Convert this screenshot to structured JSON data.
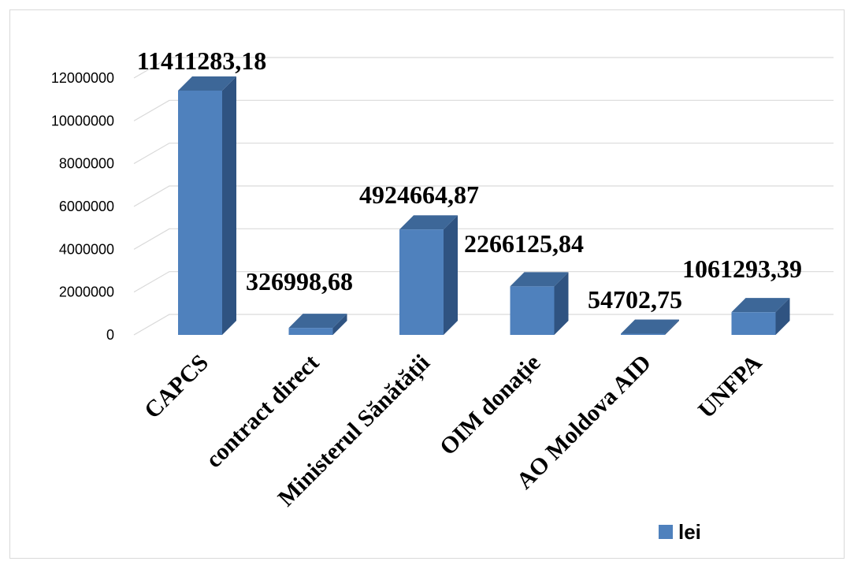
{
  "colors": {
    "bar_front": "#4f81bd",
    "bar_side": "#2f5381",
    "bar_top": "#3d6798",
    "gridline": "#d9d9d9"
  },
  "chart_data": {
    "type": "bar",
    "style": "3d-column",
    "title": "",
    "xlabel": "",
    "ylabel": "",
    "ylim": [
      0,
      12000000
    ],
    "yticks": [
      0,
      2000000,
      4000000,
      6000000,
      8000000,
      10000000,
      12000000
    ],
    "ytick_labels": [
      "0",
      "2000000",
      "4000000",
      "6000000",
      "8000000",
      "10000000",
      "12000000"
    ],
    "grid": true,
    "legend_position": "bottom-right",
    "categories": [
      "CAPCS",
      "contract direct",
      "Ministerul Sănătății",
      "OIM donație",
      "AO Moldova AID",
      "UNFPA"
    ],
    "series": [
      {
        "name": "lei",
        "values": [
          11411283.18,
          326998.68,
          4924664.87,
          2266125.84,
          54702.75,
          1061293.39
        ],
        "data_labels": [
          "11411283,18",
          "326998,68",
          "4924664,87",
          "2266125,84",
          "54702,75",
          "1061293,39"
        ]
      }
    ]
  }
}
